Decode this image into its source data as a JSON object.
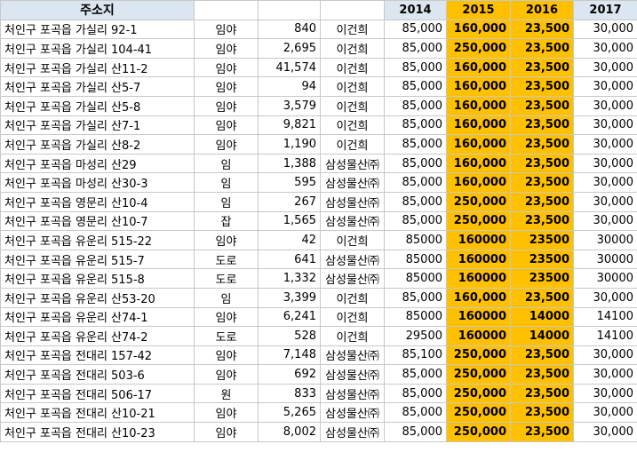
{
  "header": {
    "address": "주소지",
    "years": [
      "2014",
      "2015",
      "2016",
      "2017"
    ]
  },
  "rows": [
    {
      "address": "처인구 포곡읍 가실리 92-1",
      "type": "임야",
      "area": "840",
      "owner": "이건희",
      "y2014": "85,000",
      "y2015": "160,000",
      "y2016": "23,500",
      "y2017": "30,000"
    },
    {
      "address": "처인구 포곡읍 가실리 104-41",
      "type": "임야",
      "area": "2,695",
      "owner": "이건희",
      "y2014": "85,000",
      "y2015": "250,000",
      "y2016": "23,500",
      "y2017": "30,000"
    },
    {
      "address": "처인구 포곡읍 가실리 산11-2",
      "type": "임야",
      "area": "41,574",
      "owner": "이건희",
      "y2014": "85,000",
      "y2015": "160,000",
      "y2016": "23,500",
      "y2017": "30,000"
    },
    {
      "address": "처인구 포곡읍 가실리 산5-7",
      "type": "임야",
      "area": "94",
      "owner": "이건희",
      "y2014": "85,000",
      "y2015": "160,000",
      "y2016": "23,500",
      "y2017": "30,000"
    },
    {
      "address": "처인구 포곡읍 가실리 산5-8",
      "type": "임야",
      "area": "3,579",
      "owner": "이건희",
      "y2014": "85,000",
      "y2015": "160,000",
      "y2016": "23,500",
      "y2017": "30,000"
    },
    {
      "address": "처인구 포곡읍 가실리 산7-1",
      "type": "임야",
      "area": "9,821",
      "owner": "이건희",
      "y2014": "85,000",
      "y2015": "160,000",
      "y2016": "23,500",
      "y2017": "30,000"
    },
    {
      "address": "처인구 포곡읍 가실리 산8-2",
      "type": "임야",
      "area": "1,190",
      "owner": "이건희",
      "y2014": "85,000",
      "y2015": "160,000",
      "y2016": "23,500",
      "y2017": "30,000"
    },
    {
      "address": "처인구 포곡읍 마성리 산29",
      "type": "임",
      "area": "1,388",
      "owner": "삼성물산㈜",
      "y2014": "85,000",
      "y2015": "160,000",
      "y2016": "23,500",
      "y2017": "30,000"
    },
    {
      "address": "처인구 포곡읍 마성리 산30-3",
      "type": "임",
      "area": "595",
      "owner": "삼성물산㈜",
      "y2014": "85,000",
      "y2015": "160,000",
      "y2016": "23,500",
      "y2017": "30,000"
    },
    {
      "address": "처인구 포곡읍 영문리 산10-4",
      "type": "임",
      "area": "267",
      "owner": "삼성물산㈜",
      "y2014": "85,000",
      "y2015": "250,000",
      "y2016": "23,500",
      "y2017": "30,000"
    },
    {
      "address": "처인구 포곡읍 영문리 산10-7",
      "type": "잡",
      "area": "1,565",
      "owner": "삼성물산㈜",
      "y2014": "85,000",
      "y2015": "250,000",
      "y2016": "23,500",
      "y2017": "30,000"
    },
    {
      "address": "처인구 포곡읍 유운리 515-22",
      "type": "임야",
      "area": "42",
      "owner": "이건희",
      "y2014": "85000",
      "y2015": "160000",
      "y2016": "23500",
      "y2017": "30000"
    },
    {
      "address": "처인구 포곡읍 유운리 515-7",
      "type": "도로",
      "area": "641",
      "owner": "삼성물산㈜",
      "y2014": "85000",
      "y2015": "160000",
      "y2016": "23500",
      "y2017": "30000"
    },
    {
      "address": "처인구 포곡읍 유운리 515-8",
      "type": "도로",
      "area": "1,332",
      "owner": "삼성물산㈜",
      "y2014": "85000",
      "y2015": "160000",
      "y2016": "23500",
      "y2017": "30000"
    },
    {
      "address": "처인구 포곡읍 유운리 산53-20",
      "type": "임",
      "area": "3,399",
      "owner": "이건희",
      "y2014": "85,000",
      "y2015": "160,000",
      "y2016": "23,500",
      "y2017": "30,000"
    },
    {
      "address": "처인구 포곡읍 유운리 산74-1",
      "type": "임야",
      "area": "6,241",
      "owner": "이건희",
      "y2014": "85000",
      "y2015": "160000",
      "y2016": "14000",
      "y2017": "14100"
    },
    {
      "address": "처인구 포곡읍 유운리 산74-2",
      "type": "도로",
      "area": "528",
      "owner": "이건희",
      "y2014": "29500",
      "y2015": "160000",
      "y2016": "14000",
      "y2017": "14100"
    },
    {
      "address": "처인구 포곡읍 전대리 157-42",
      "type": "임야",
      "area": "7,148",
      "owner": "삼성물산㈜",
      "y2014": "85,100",
      "y2015": "250,000",
      "y2016": "23,500",
      "y2017": "30,000"
    },
    {
      "address": "처인구 포곡읍 전대리 503-6",
      "type": "임야",
      "area": "692",
      "owner": "삼성물산㈜",
      "y2014": "85,000",
      "y2015": "250,000",
      "y2016": "23,500",
      "y2017": "30,000"
    },
    {
      "address": "처인구 포곡읍 전대리 506-17",
      "type": "원",
      "area": "833",
      "owner": "삼성물산㈜",
      "y2014": "85,000",
      "y2015": "250,000",
      "y2016": "23,500",
      "y2017": "30,000"
    },
    {
      "address": "처인구 포곡읍 전대리 산10-21",
      "type": "임야",
      "area": "5,265",
      "owner": "삼성물산㈜",
      "y2014": "85,000",
      "y2015": "250,000",
      "y2016": "23,500",
      "y2017": "30,000"
    },
    {
      "address": "처인구 포곡읍 전대리 산10-23",
      "type": "임야",
      "area": "8,002",
      "owner": "삼성물산㈜",
      "y2014": "85,000",
      "y2015": "250,000",
      "y2016": "23,500",
      "y2017": "30,000"
    }
  ]
}
